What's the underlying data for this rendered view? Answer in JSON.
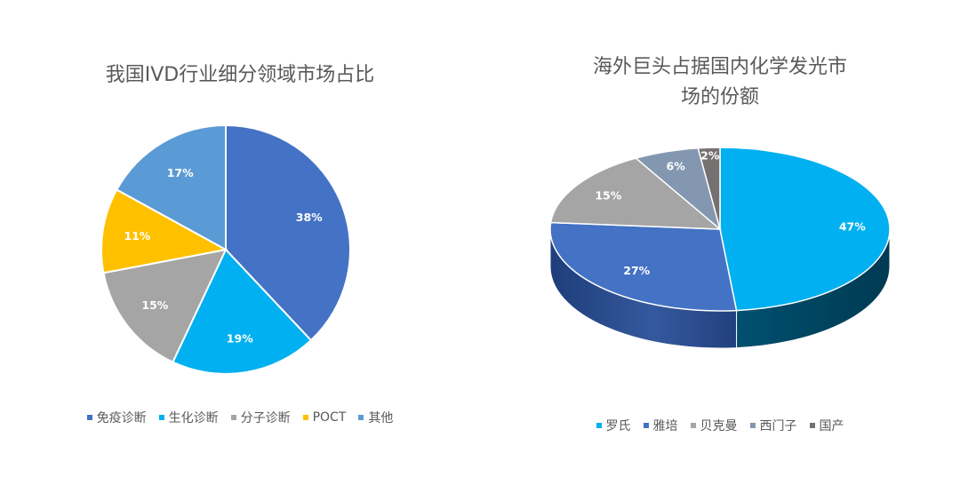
{
  "chart_data": [
    {
      "type": "pie",
      "title": "我国IVD行业细分领域市场占比",
      "categories": [
        "免疫诊断",
        "生化诊断",
        "分子诊断",
        "POCT",
        "其他"
      ],
      "values": [
        38,
        19,
        15,
        11,
        17
      ],
      "labels": [
        "38%",
        "19%",
        "15%",
        "11%",
        "17%"
      ],
      "colors": [
        "#4472C4",
        "#00B0F0",
        "#A5A5A5",
        "#FFC000",
        "#5B9BD5"
      ],
      "legend_position": "bottom"
    },
    {
      "type": "pie",
      "title": "海外巨头占据国内化学发光市场的份额",
      "title_lines": [
        "海外巨头占据国内化学发光市",
        "场的份额"
      ],
      "categories": [
        "罗氏",
        "雅培",
        "贝克曼",
        "西门子",
        "国产"
      ],
      "values": [
        47,
        27,
        15,
        6,
        2
      ],
      "labels": [
        "47%",
        "27%",
        "15%",
        "6%",
        "2%"
      ],
      "colors": [
        "#00B0F0",
        "#4472C4",
        "#A5A5A5",
        "#8497B0",
        "#767171"
      ],
      "style": "3d",
      "legend_position": "bottom"
    }
  ]
}
